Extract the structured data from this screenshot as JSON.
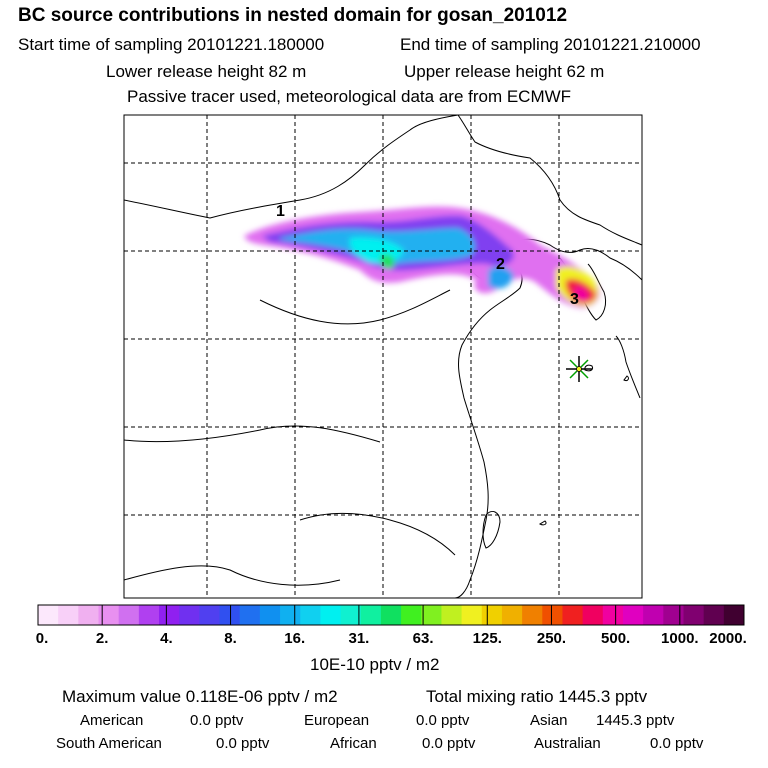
{
  "header": {
    "title": "BC  source contributions in nested domain for gosan_201012",
    "start_label": "Start time of sampling 20101221.180000",
    "end_label": "End time of sampling 20101221.210000",
    "lower_label": "Lower release height   82 m",
    "upper_label": "Upper release height   62 m",
    "tracer_note": "Passive tracer used, meteorological data are from ECMWF"
  },
  "map": {
    "markers": [
      "3",
      "2",
      "1"
    ],
    "receptor": "gosan-star"
  },
  "colorbar": {
    "colors": [
      "#fce8fc",
      "#f8d0f8",
      "#f0b0f0",
      "#e890f0",
      "#d070f0",
      "#b040f0",
      "#9020f0",
      "#7030f0",
      "#5040f0",
      "#3050f0",
      "#2070f0",
      "#1090f0",
      "#10b0f0",
      "#10d0f0",
      "#00f0f0",
      "#10f0d0",
      "#10f0a0",
      "#10e060",
      "#40f020",
      "#80f020",
      "#c0f020",
      "#f0f020",
      "#f0d000",
      "#f0b000",
      "#f08000",
      "#f05000",
      "#f02020",
      "#f00060",
      "#f000a0",
      "#e000c0",
      "#c000b0",
      "#a00090",
      "#800070",
      "#600050",
      "#400030"
    ],
    "labels": [
      "0.",
      "2.",
      "4.",
      "8.",
      "16.",
      "31.",
      "63.",
      "125.",
      "250.",
      "500.",
      "1000.",
      "2000."
    ],
    "unit": "10E-10 pptv / m2"
  },
  "summary": {
    "max_value": "Maximum value  0.118E-06 pptv / m2",
    "total_mixing": "Total mixing ratio     1445.3 pptv",
    "american_label": "American",
    "american_value": "0.0 pptv",
    "european_label": "European",
    "european_value": "0.0 pptv",
    "asian_label": "Asian",
    "asian_value": "1445.3 pptv",
    "south_american_label": "South American",
    "south_american_value": "0.0 pptv",
    "african_label": "African",
    "african_value": "0.0 pptv",
    "australian_label": "Australian",
    "australian_value": "0.0 pptv"
  }
}
